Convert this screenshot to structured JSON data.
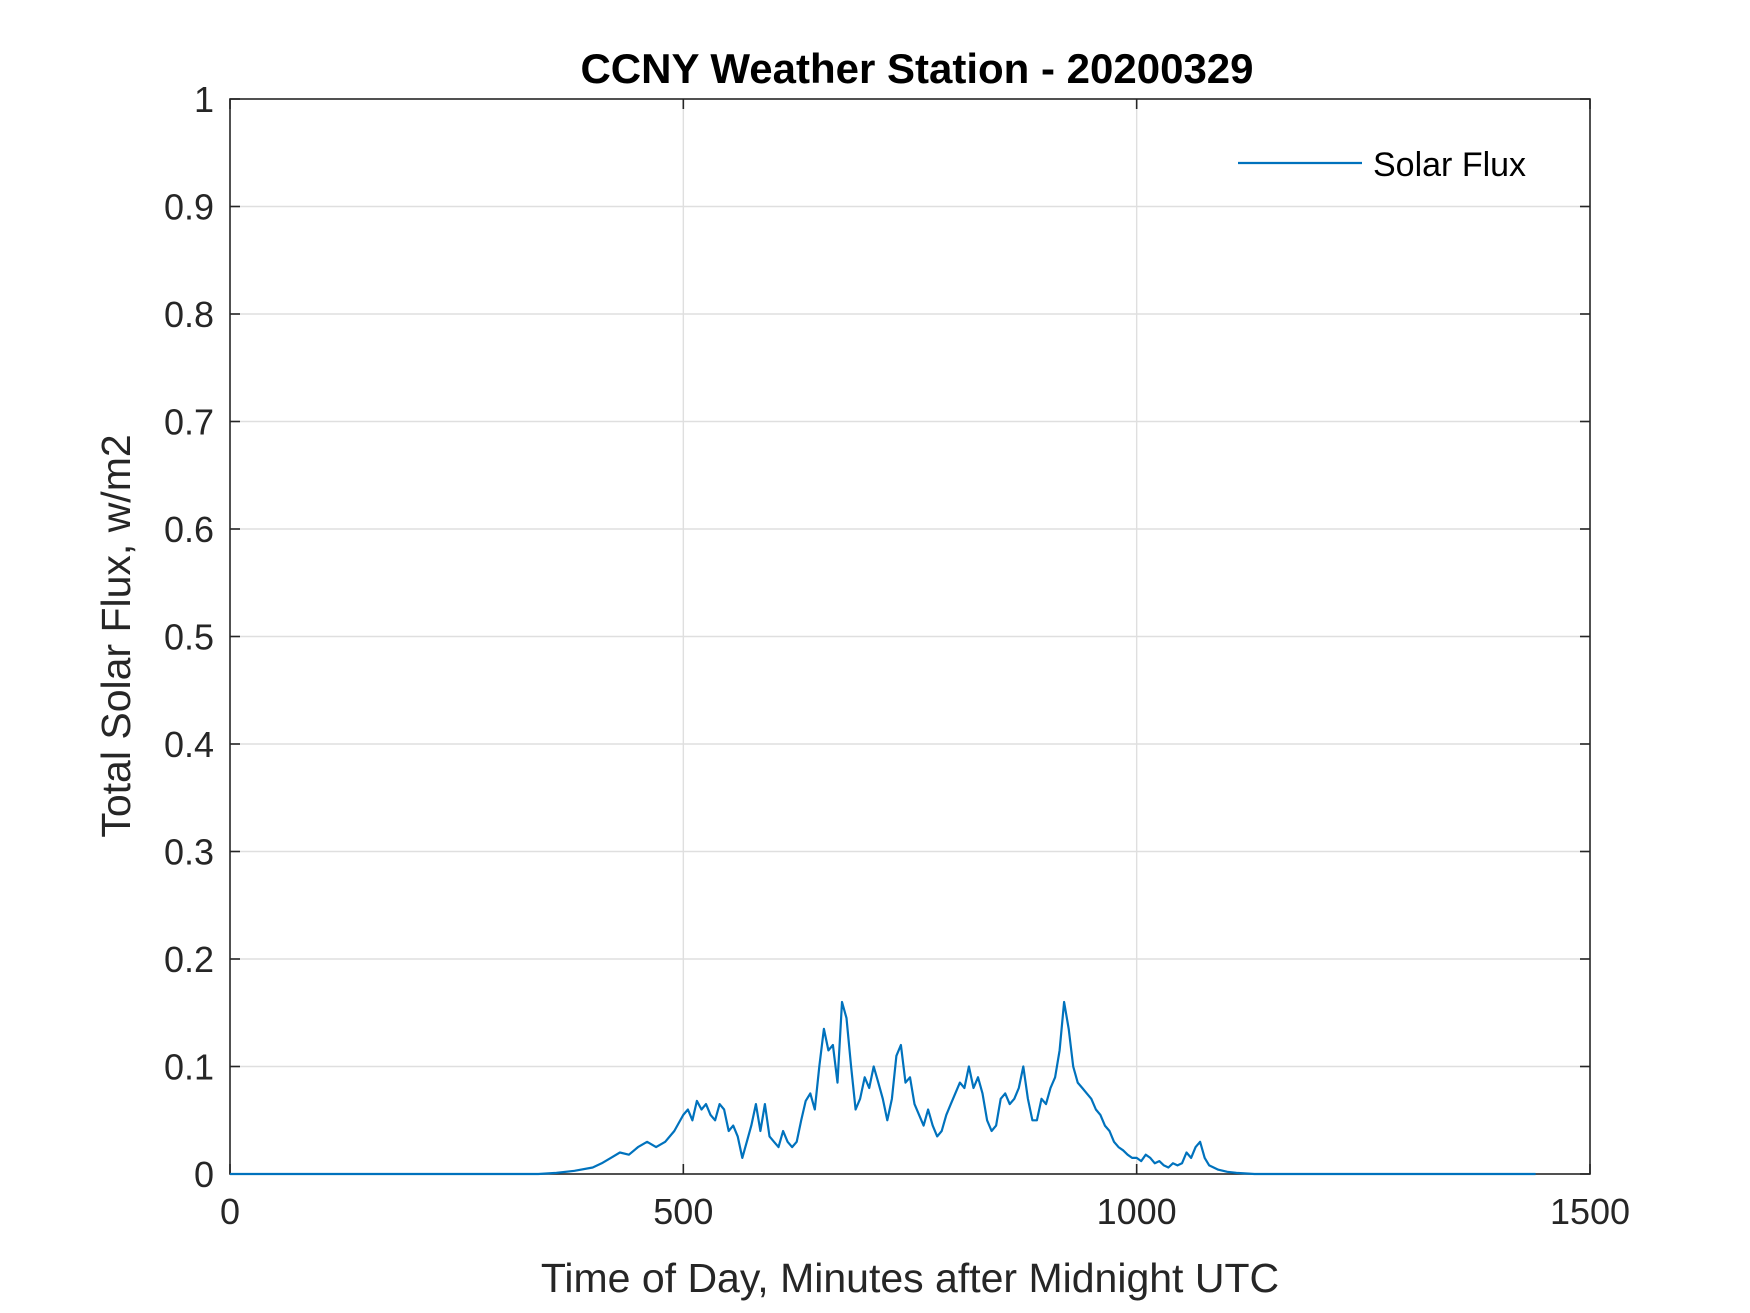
{
  "chart_data": {
    "type": "line",
    "title": "CCNY Weather Station - 20200329",
    "xlabel": "Time of Day, Minutes after Midnight UTC",
    "ylabel": "Total Solar Flux, w/m2",
    "xlim": [
      0,
      1500
    ],
    "ylim": [
      0,
      1
    ],
    "xticks": [
      0,
      500,
      1000,
      1500
    ],
    "xtick_labels": [
      "0",
      "500",
      "1000",
      "1500"
    ],
    "yticks": [
      0,
      0.1,
      0.2,
      0.3,
      0.4,
      0.5,
      0.6,
      0.7,
      0.8,
      0.9,
      1
    ],
    "ytick_labels": [
      "0",
      "0.1",
      "0.2",
      "0.3",
      "0.4",
      "0.5",
      "0.6",
      "0.7",
      "0.8",
      "0.9",
      "1"
    ],
    "grid": true,
    "legend_location": "top-right",
    "series": [
      {
        "name": "Solar Flux",
        "color": "#0072BD",
        "x": [
          0,
          340,
          360,
          380,
          400,
          410,
          420,
          430,
          440,
          450,
          460,
          470,
          480,
          490,
          500,
          505,
          510,
          515,
          520,
          525,
          530,
          535,
          540,
          545,
          550,
          555,
          560,
          565,
          570,
          575,
          580,
          585,
          590,
          595,
          600,
          605,
          610,
          615,
          620,
          625,
          630,
          635,
          640,
          645,
          650,
          655,
          660,
          665,
          670,
          675,
          680,
          685,
          690,
          695,
          700,
          705,
          710,
          715,
          720,
          725,
          730,
          735,
          740,
          745,
          750,
          755,
          760,
          765,
          770,
          775,
          780,
          785,
          790,
          795,
          800,
          805,
          810,
          815,
          820,
          825,
          830,
          835,
          840,
          845,
          850,
          855,
          860,
          865,
          870,
          875,
          880,
          885,
          890,
          895,
          900,
          905,
          910,
          915,
          920,
          925,
          930,
          935,
          940,
          945,
          950,
          955,
          960,
          965,
          970,
          975,
          980,
          985,
          990,
          995,
          1000,
          1005,
          1010,
          1015,
          1020,
          1025,
          1030,
          1035,
          1040,
          1045,
          1050,
          1055,
          1060,
          1065,
          1070,
          1075,
          1080,
          1090,
          1100,
          1110,
          1130,
          1200,
          1300,
          1400,
          1440
        ],
        "y": [
          0,
          0,
          0.001,
          0.003,
          0.006,
          0.01,
          0.015,
          0.02,
          0.018,
          0.025,
          0.03,
          0.025,
          0.03,
          0.04,
          0.055,
          0.06,
          0.05,
          0.068,
          0.06,
          0.065,
          0.055,
          0.05,
          0.065,
          0.06,
          0.04,
          0.045,
          0.035,
          0.015,
          0.03,
          0.045,
          0.065,
          0.04,
          0.065,
          0.035,
          0.03,
          0.025,
          0.04,
          0.03,
          0.025,
          0.03,
          0.05,
          0.068,
          0.075,
          0.06,
          0.1,
          0.135,
          0.115,
          0.12,
          0.085,
          0.16,
          0.145,
          0.1,
          0.06,
          0.07,
          0.09,
          0.08,
          0.1,
          0.085,
          0.07,
          0.05,
          0.07,
          0.11,
          0.12,
          0.085,
          0.09,
          0.065,
          0.055,
          0.045,
          0.06,
          0.045,
          0.035,
          0.04,
          0.055,
          0.065,
          0.075,
          0.085,
          0.08,
          0.1,
          0.08,
          0.09,
          0.075,
          0.05,
          0.04,
          0.045,
          0.07,
          0.075,
          0.065,
          0.07,
          0.08,
          0.1,
          0.07,
          0.05,
          0.05,
          0.07,
          0.065,
          0.08,
          0.09,
          0.115,
          0.16,
          0.135,
          0.1,
          0.085,
          0.08,
          0.075,
          0.07,
          0.06,
          0.055,
          0.045,
          0.04,
          0.03,
          0.025,
          0.022,
          0.018,
          0.015,
          0.015,
          0.012,
          0.018,
          0.015,
          0.01,
          0.012,
          0.008,
          0.006,
          0.01,
          0.008,
          0.01,
          0.02,
          0.015,
          0.025,
          0.03,
          0.015,
          0.008,
          0.004,
          0.002,
          0.001,
          0,
          0,
          0,
          0,
          0
        ]
      }
    ]
  }
}
